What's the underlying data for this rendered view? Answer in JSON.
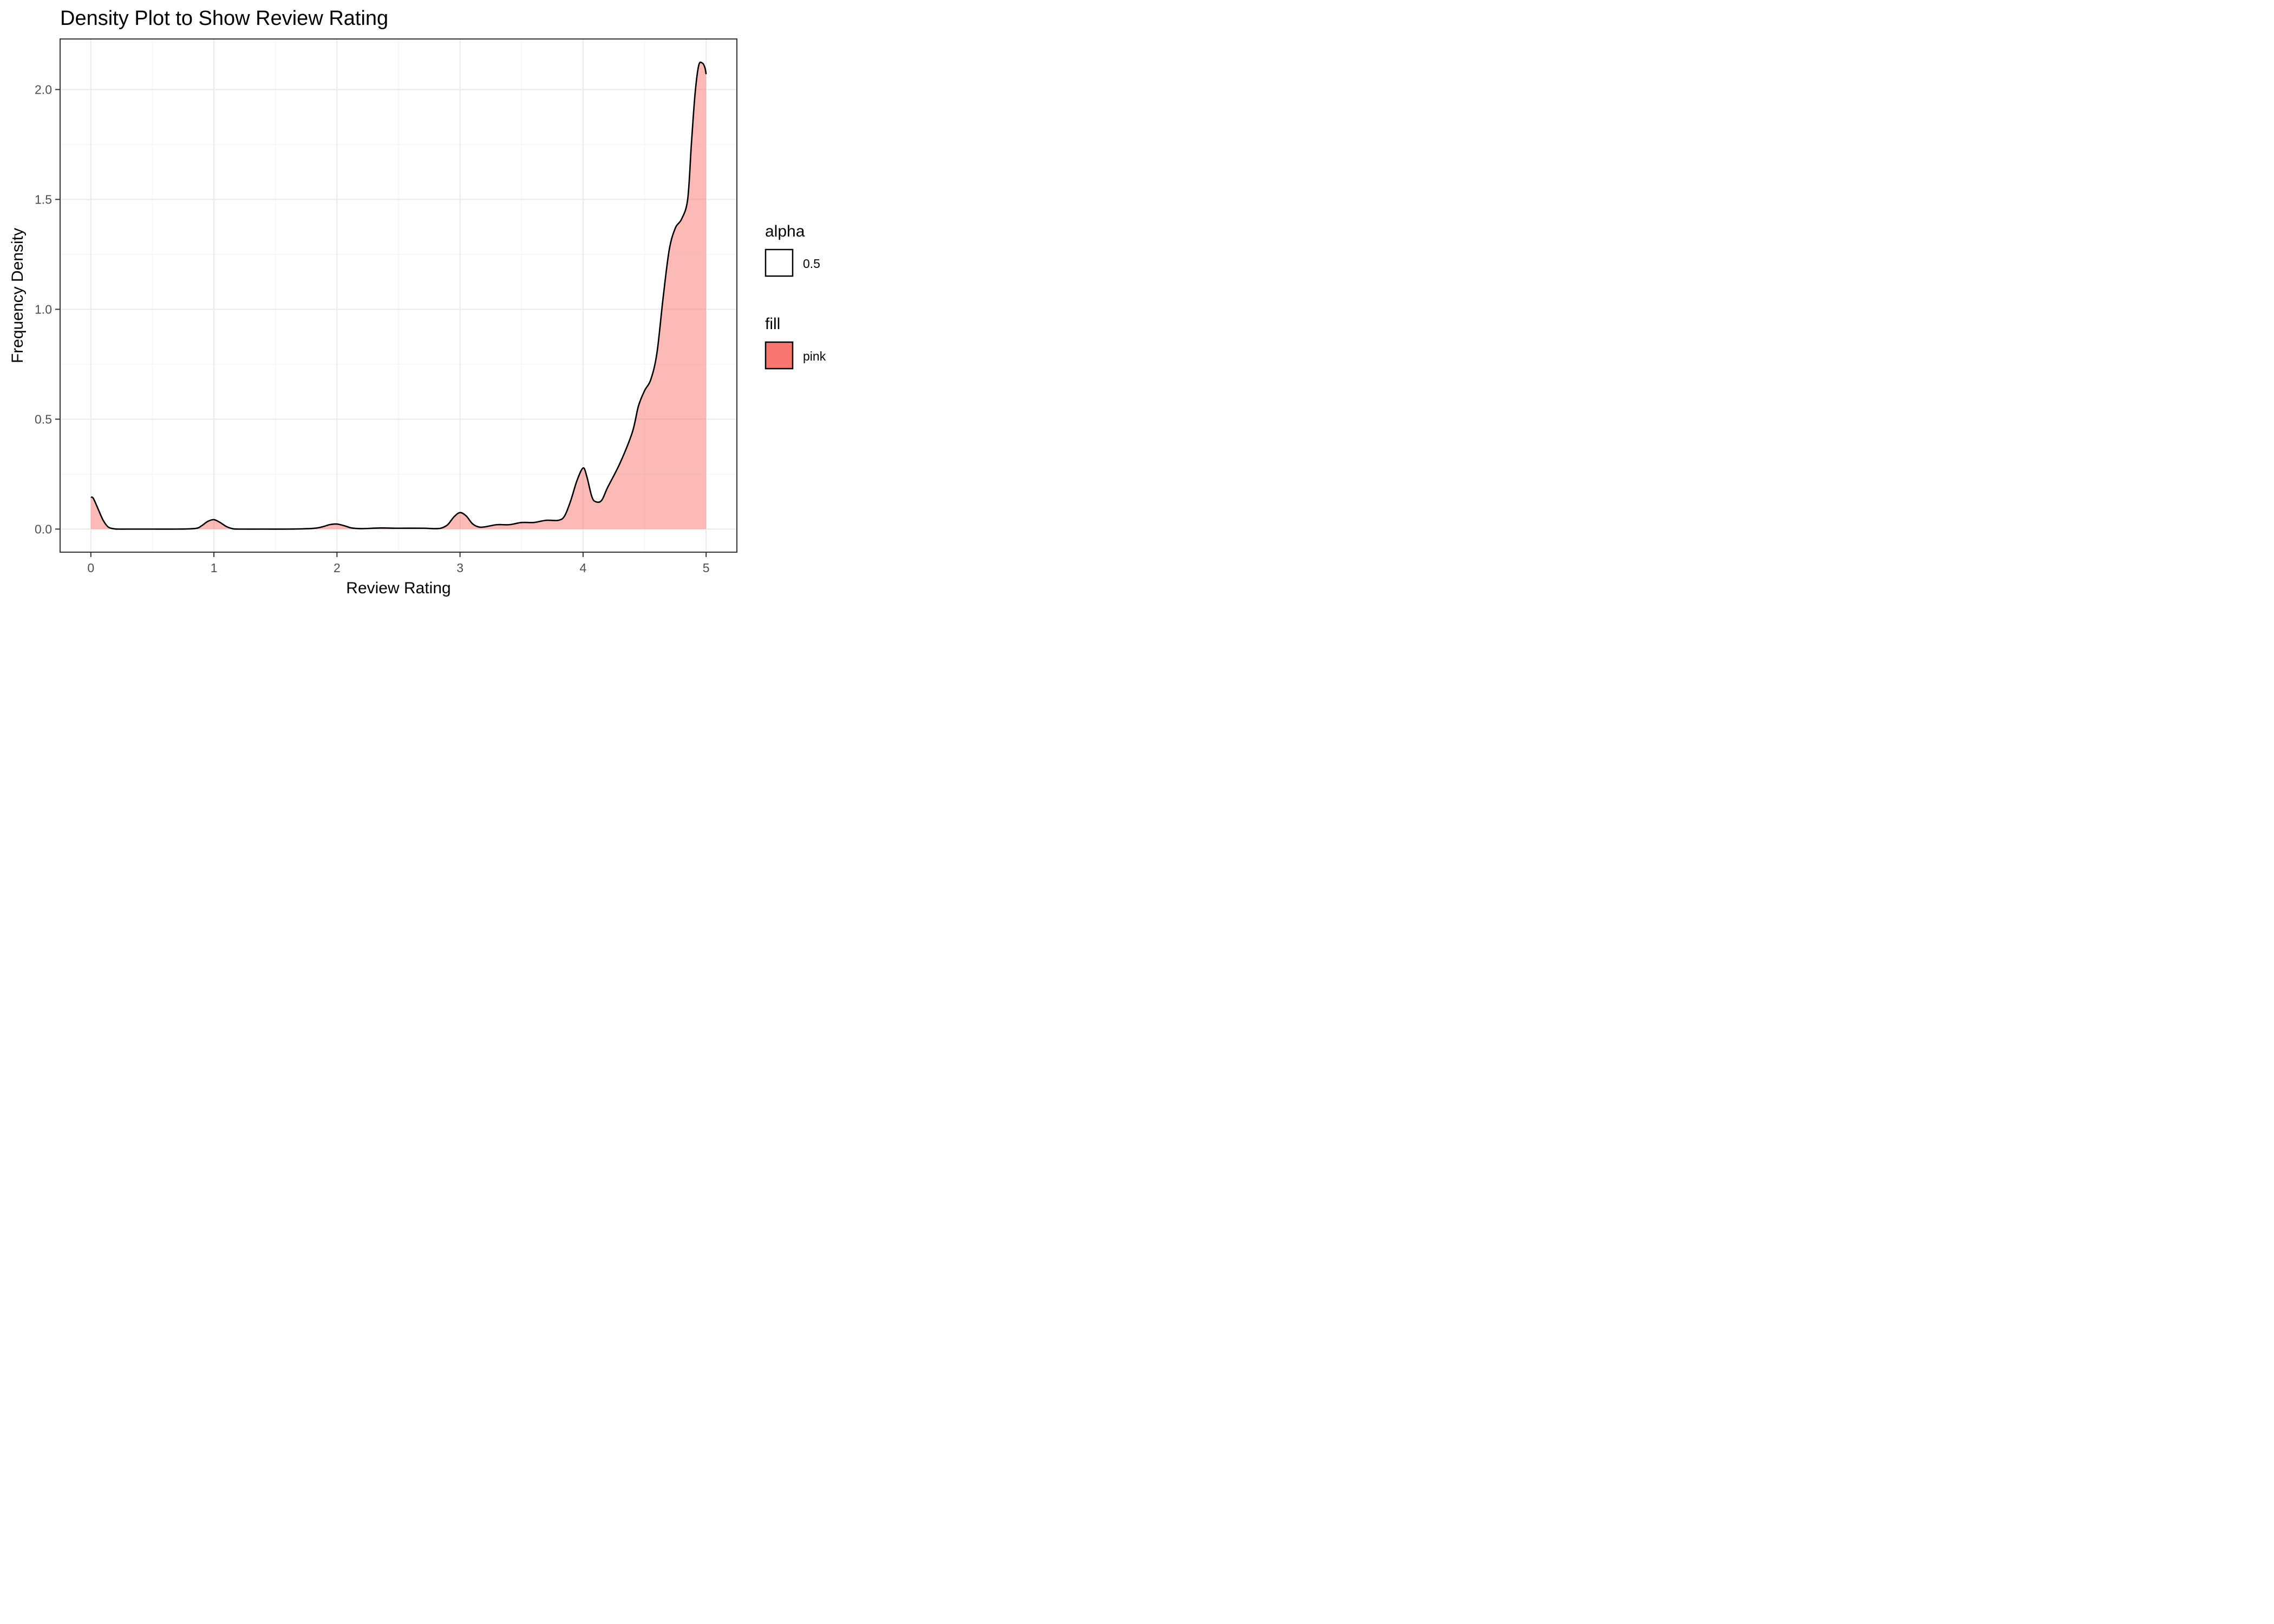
{
  "chart_data": {
    "type": "area",
    "title": "Density Plot to Show Review Rating",
    "xlabel": "Review Rating",
    "ylabel": "Frequency Density",
    "xlim": [
      -0.25,
      5.25
    ],
    "ylim": [
      -0.105,
      2.23
    ],
    "grid": true,
    "x_ticks": [
      0,
      1,
      2,
      3,
      4,
      5
    ],
    "x_tick_labels": [
      "0",
      "1",
      "2",
      "3",
      "4",
      "5"
    ],
    "y_ticks": [
      0.0,
      0.5,
      1.0,
      1.5,
      2.0
    ],
    "y_tick_labels": [
      "0.0",
      "0.5",
      "1.0",
      "1.5",
      "2.0"
    ],
    "legend_position": "right",
    "legend": [
      {
        "title": "alpha",
        "key": "outline",
        "label": "0.5"
      },
      {
        "title": "fill",
        "key": "filled",
        "label": "pink"
      }
    ],
    "colors": {
      "fill": "#f8766d",
      "fill_opacity": 0.5,
      "line": "#000000",
      "legend_fill": "#f8766d"
    },
    "series": [
      {
        "x": [
          0,
          0.02,
          0.06,
          0.1,
          0.14,
          0.18,
          0.22,
          0.3,
          0.5,
          0.7,
          0.85,
          0.9,
          0.95,
          1.0,
          1.05,
          1.1,
          1.15,
          1.2,
          1.4,
          1.6,
          1.8,
          1.88,
          1.94,
          2.0,
          2.06,
          2.12,
          2.2,
          2.35,
          2.5,
          2.7,
          2.8,
          2.85,
          2.9,
          2.95,
          3.0,
          3.05,
          3.1,
          3.15,
          3.2,
          3.3,
          3.4,
          3.5,
          3.6,
          3.7,
          3.8,
          3.85,
          3.9,
          3.95,
          4.0,
          4.03,
          4.07,
          4.1,
          4.15,
          4.2,
          4.3,
          4.4,
          4.45,
          4.5,
          4.55,
          4.6,
          4.65,
          4.7,
          4.75,
          4.8,
          4.85,
          4.88,
          4.91,
          4.94,
          4.97,
          4.99,
          5.0
        ],
        "y": [
          0.145,
          0.14,
          0.09,
          0.04,
          0.01,
          0.002,
          0.0,
          0.0,
          0.0,
          0.0,
          0.003,
          0.015,
          0.035,
          0.043,
          0.03,
          0.012,
          0.002,
          0.0,
          0.0,
          0.0,
          0.003,
          0.01,
          0.02,
          0.023,
          0.015,
          0.005,
          0.002,
          0.005,
          0.004,
          0.004,
          0.002,
          0.005,
          0.02,
          0.055,
          0.075,
          0.06,
          0.025,
          0.01,
          0.01,
          0.02,
          0.02,
          0.03,
          0.03,
          0.04,
          0.04,
          0.06,
          0.13,
          0.22,
          0.278,
          0.24,
          0.15,
          0.125,
          0.13,
          0.19,
          0.3,
          0.44,
          0.56,
          0.63,
          0.68,
          0.8,
          1.05,
          1.27,
          1.37,
          1.41,
          1.5,
          1.75,
          1.98,
          2.11,
          2.12,
          2.1,
          2.07
        ]
      }
    ]
  }
}
